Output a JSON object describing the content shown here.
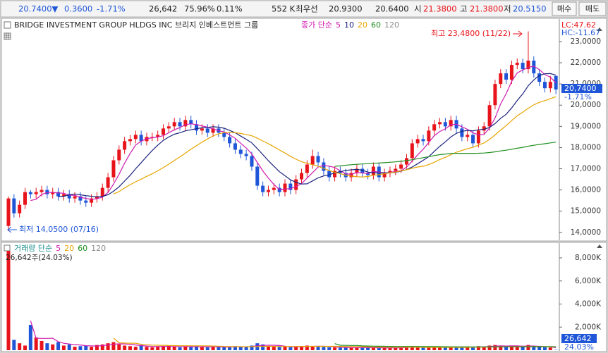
{
  "quote_bar": {
    "price": "20.7400▼",
    "change": "0.3600",
    "change_pct": "-1.71%",
    "volume": "26,642",
    "volume_ratio": "75.96%",
    "turnover": "0.11%",
    "amount": "552 K",
    "best_label": "최우선",
    "ask": "20.9300",
    "bid": "20.6400",
    "open_label": "시",
    "open": "21.3800",
    "high_label": "고",
    "high": "21.3800",
    "low_label": "저",
    "low": "20.5150",
    "buy": "매수",
    "sell": "매도"
  },
  "chart_data": [
    {
      "type": "candlestick",
      "title": "BRIDGE INVESTMENT GROUP HLDGS INC  브리지 인베스트먼트 그룹",
      "legend_label": "종가 단순",
      "ma_periods": [
        5,
        10,
        20,
        60,
        120
      ],
      "ma_colors": [
        "#d01bb0",
        "#1a237e",
        "#e8a400",
        "#1f8f1f",
        "#8a8a8a"
      ],
      "up_color": "#e8141c",
      "down_color": "#1f56d8",
      "open": [
        14.3,
        15.6,
        14.9,
        15.3,
        15.9,
        15.8,
        15.9,
        16.0,
        15.8,
        15.9,
        15.7,
        15.8,
        15.6,
        15.7,
        15.5,
        15.4,
        15.6,
        15.7,
        16.1,
        16.6,
        17.4,
        17.9,
        18.3,
        18.4,
        18.6,
        18.3,
        18.5,
        18.5,
        18.6,
        18.9,
        19.0,
        19.2,
        19.0,
        19.3,
        19.1,
        18.8,
        18.9,
        18.7,
        18.9,
        18.7,
        18.5,
        18.2,
        17.9,
        17.7,
        17.6,
        17.1,
        16.2,
        15.9,
        16.0,
        16.1,
        15.9,
        16.3,
        16.0,
        16.5,
        16.8,
        17.2,
        17.6,
        17.3,
        16.9,
        16.6,
        16.9,
        16.8,
        16.6,
        16.8,
        17.0,
        16.8,
        16.7,
        17.1,
        16.6,
        16.8,
        16.9,
        17.0,
        17.2,
        17.5,
        18.2,
        18.4,
        18.3,
        18.8,
        19.1,
        19.2,
        19.0,
        19.3,
        18.9,
        18.5,
        18.6,
        18.2,
        18.8,
        19.0,
        20.0,
        21.0,
        21.5,
        21.2,
        21.9,
        22.0,
        21.7,
        22.1,
        21.5,
        21.1,
        20.8,
        21.38
      ],
      "high": [
        15.7,
        15.8,
        15.5,
        16.1,
        16.0,
        16.1,
        16.2,
        16.2,
        16.1,
        16.1,
        16.0,
        16.0,
        15.9,
        15.9,
        15.7,
        15.8,
        15.9,
        16.3,
        16.8,
        17.6,
        18.1,
        18.5,
        18.6,
        18.8,
        18.8,
        18.7,
        18.7,
        18.8,
        19.1,
        19.2,
        19.4,
        19.4,
        19.5,
        19.5,
        19.3,
        19.1,
        19.1,
        19.1,
        19.1,
        18.9,
        18.7,
        18.4,
        18.1,
        17.9,
        17.8,
        17.3,
        16.4,
        16.2,
        16.3,
        16.3,
        16.5,
        16.5,
        16.7,
        17.0,
        17.4,
        17.9,
        17.8,
        17.5,
        17.1,
        17.1,
        17.1,
        17.0,
        17.0,
        17.2,
        17.2,
        17.0,
        17.3,
        17.3,
        17.0,
        17.1,
        17.2,
        17.4,
        17.7,
        18.4,
        18.6,
        18.6,
        19.0,
        19.3,
        19.4,
        19.4,
        19.5,
        19.5,
        19.1,
        18.8,
        18.8,
        19.0,
        19.2,
        20.2,
        21.2,
        21.7,
        21.7,
        22.1,
        22.2,
        22.2,
        23.48,
        22.3,
        21.7,
        21.3,
        21.38,
        21.38
      ],
      "low": [
        14.05,
        14.7,
        14.7,
        15.1,
        15.6,
        15.6,
        15.7,
        15.6,
        15.6,
        15.5,
        15.5,
        15.4,
        15.4,
        15.3,
        15.2,
        15.2,
        15.4,
        15.5,
        15.9,
        16.4,
        17.2,
        17.7,
        18.1,
        18.2,
        18.1,
        18.1,
        18.3,
        18.3,
        18.4,
        18.7,
        18.8,
        18.8,
        18.8,
        18.9,
        18.6,
        18.6,
        18.5,
        18.5,
        18.5,
        18.3,
        18.0,
        17.7,
        17.5,
        17.4,
        16.9,
        16.0,
        15.7,
        15.7,
        15.8,
        15.7,
        15.7,
        15.8,
        15.8,
        16.3,
        16.6,
        17.0,
        17.1,
        16.7,
        16.4,
        16.4,
        16.6,
        16.4,
        16.4,
        16.6,
        16.6,
        16.5,
        16.5,
        16.4,
        16.4,
        16.6,
        16.7,
        16.8,
        17.0,
        17.3,
        18.0,
        18.1,
        18.1,
        18.6,
        18.9,
        18.8,
        18.8,
        18.7,
        18.3,
        18.3,
        18.0,
        18.0,
        18.6,
        18.8,
        19.8,
        20.8,
        21.0,
        21.0,
        21.7,
        21.5,
        21.5,
        21.3,
        20.9,
        20.6,
        20.6,
        20.515
      ],
      "close": [
        15.6,
        14.9,
        15.3,
        15.9,
        15.8,
        15.9,
        16.0,
        15.8,
        15.9,
        15.7,
        15.8,
        15.6,
        15.7,
        15.5,
        15.4,
        15.6,
        15.7,
        16.1,
        16.6,
        17.4,
        17.9,
        18.3,
        18.4,
        18.6,
        18.3,
        18.5,
        18.5,
        18.6,
        18.9,
        19.0,
        19.2,
        19.0,
        19.3,
        19.1,
        18.8,
        18.9,
        18.7,
        18.9,
        18.7,
        18.5,
        18.2,
        17.9,
        17.7,
        17.6,
        17.1,
        16.2,
        15.9,
        16.0,
        16.1,
        15.9,
        16.3,
        16.0,
        16.5,
        16.8,
        17.2,
        17.6,
        17.3,
        16.9,
        16.6,
        16.9,
        16.8,
        16.6,
        16.8,
        17.0,
        16.8,
        16.7,
        17.1,
        16.6,
        16.8,
        16.9,
        17.0,
        17.2,
        17.5,
        18.2,
        18.4,
        18.3,
        18.8,
        19.1,
        19.2,
        19.0,
        19.3,
        18.9,
        18.5,
        18.6,
        18.2,
        18.8,
        19.0,
        20.0,
        21.0,
        21.5,
        21.2,
        21.9,
        22.0,
        21.7,
        22.1,
        21.5,
        21.1,
        20.8,
        21.1,
        20.74
      ],
      "ylim": [
        13.66,
        24.03
      ],
      "yticks": [
        {
          "value": 14,
          "label": "14,0000"
        },
        {
          "value": 15,
          "label": "15,0000"
        },
        {
          "value": 16,
          "label": "16,0000"
        },
        {
          "value": 17,
          "label": "17,0000"
        },
        {
          "value": 18,
          "label": "18,0000"
        },
        {
          "value": 19,
          "label": "19,0000"
        },
        {
          "value": 20,
          "label": "20,0000"
        },
        {
          "value": 21,
          "label": "21,0000"
        },
        {
          "value": 22,
          "label": "22,0000"
        },
        {
          "value": 23,
          "label": "23,0000"
        }
      ],
      "lc_label": "LC:47.62",
      "hc_label": "HC:-11.67",
      "current_label": "20,7400",
      "current_change": "-1.71%",
      "high_note": "최고 23,4800 (11/22)",
      "low_note": "최저 14,0500 (07/16)"
    },
    {
      "type": "bar",
      "legend_label": "거래량 단순",
      "ma_periods": [
        5,
        20,
        60,
        120
      ],
      "ma_colors": [
        "#d01bb0",
        "#e8a400",
        "#1f8f1f",
        "#8a8a8a"
      ],
      "note": "26,642주(24.03%)",
      "values": [
        8600,
        900,
        600,
        400,
        2200,
        1100,
        800,
        600,
        500,
        700,
        400,
        500,
        300,
        350,
        400,
        300,
        450,
        500,
        600,
        700,
        500,
        400,
        350,
        300,
        450,
        300,
        250,
        300,
        350,
        400,
        300,
        250,
        300,
        280,
        350,
        300,
        250,
        300,
        280,
        250,
        300,
        350,
        300,
        280,
        400,
        600,
        500,
        350,
        300,
        280,
        300,
        250,
        300,
        350,
        400,
        350,
        300,
        280,
        250,
        230,
        220,
        250,
        200,
        230,
        220,
        250,
        200,
        180,
        200,
        220,
        200,
        250,
        300,
        350,
        300,
        280,
        250,
        300,
        250,
        230,
        220,
        250,
        230,
        300,
        280,
        350,
        300,
        400,
        450,
        350,
        300,
        400,
        350,
        300,
        450,
        300,
        280,
        250,
        230,
        26.642
      ],
      "ylim": [
        0,
        9100
      ],
      "yticks": [
        {
          "value": 2000,
          "label": "2,000K"
        },
        {
          "value": 4000,
          "label": "4,000K"
        },
        {
          "value": 6000,
          "label": "6,000K"
        },
        {
          "value": 8000,
          "label": "8,000K"
        }
      ],
      "current_label": "26,642",
      "current_pct": "24.03%"
    }
  ]
}
